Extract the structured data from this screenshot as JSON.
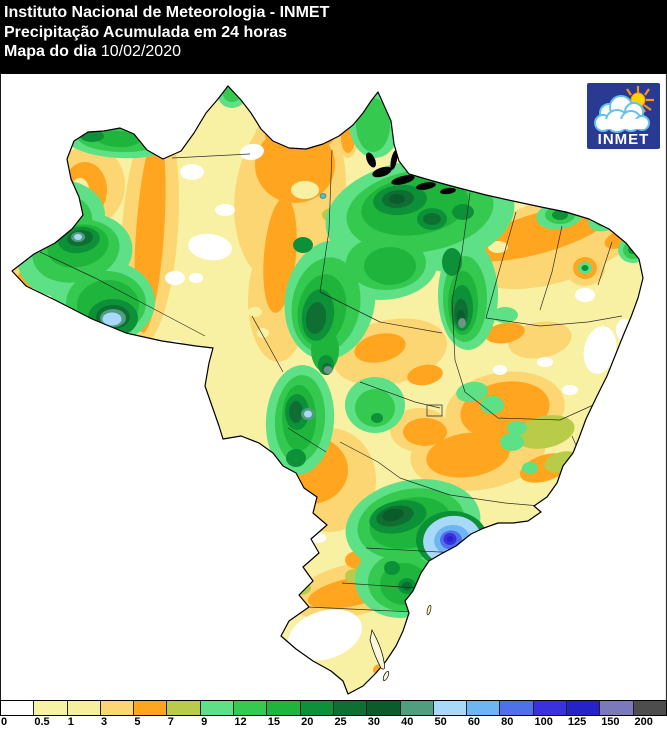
{
  "header": {
    "line1": "Instituto Nacional de Meteorologia - INMET",
    "line2": "Precipitação Acumulada em 24 horas",
    "line3_label": "Mapa do dia",
    "line3_date": "10/02/2020"
  },
  "logo": {
    "text": "INMET"
  },
  "legend": {
    "unit_values": [
      "0",
      "0.5",
      "1",
      "3",
      "5",
      "7",
      "9",
      "12",
      "15",
      "20",
      "25",
      "30",
      "40",
      "50",
      "60",
      "80",
      "100",
      "125",
      "150",
      "200"
    ],
    "cell_colors": [
      "#FFFFFF",
      "#F8F2A5",
      "#F6EF9D",
      "#FBD673",
      "#FFA51F",
      "#B9CC4A",
      "#5EE087",
      "#36C94F",
      "#1FB53C",
      "#0C9139",
      "#0F6F33",
      "#0A5C2B",
      "#4F9E80",
      "#A9D9F8",
      "#6DB5F3",
      "#4E70E8",
      "#3A30DE",
      "#2422C8",
      "#7B79BA",
      "#4D4D4D"
    ]
  },
  "colors": {
    "pale_yellow": "#F8F1A3",
    "gold": "#FBD673",
    "orange": "#FFA51F",
    "olive": "#B9CC4A",
    "green1": "#5EE087",
    "green2": "#36C94F",
    "green3": "#1FB53C",
    "green4": "#0C9139",
    "green5": "#0F6F33",
    "green6": "#0A5C2B",
    "teal": "#4F9E80",
    "teal_gray": "#6D9487",
    "blue1": "#A9D9F8",
    "blue2": "#6DB5F3",
    "blue3": "#4E70E8",
    "blue4": "#3A30DE",
    "blue5": "#2422C8",
    "white": "#FFFFFF",
    "outline": "#000000",
    "state_line": "#1A1A1A",
    "logo_bg": "#2A3A93",
    "logo_sun": "#FFD400",
    "logo_ray": "#F7941D",
    "logo_cloud_stroke": "#62C2EC"
  }
}
